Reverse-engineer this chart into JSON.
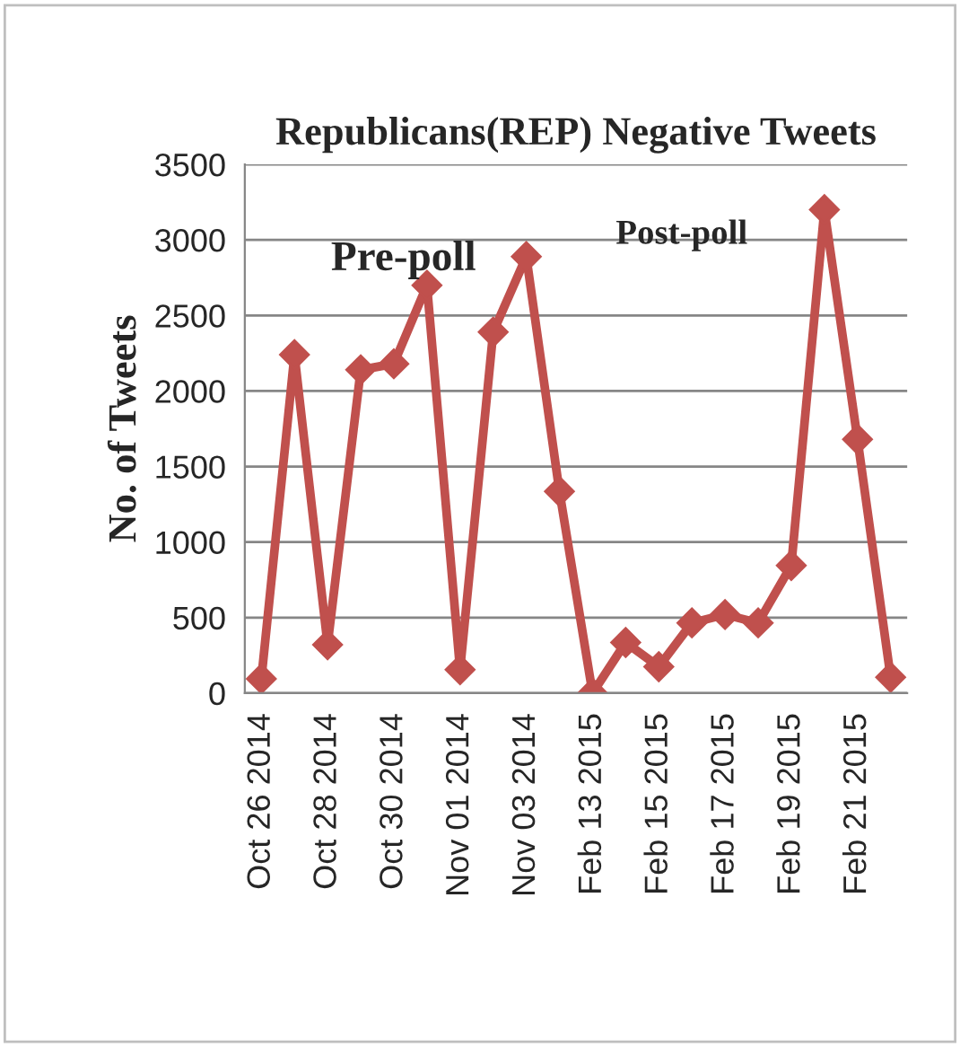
{
  "chart_data": {
    "type": "line",
    "title": "Republicans(REP) Negative Tweets",
    "ylabel": "No. of Tweets",
    "categories": [
      "Oct 26 2014",
      null,
      "Oct 28 2014",
      null,
      "Oct 30 2014",
      null,
      "Nov 01 2014",
      null,
      "Nov 03 2014",
      null,
      "Feb 13 2015",
      null,
      "Feb 15 2015",
      null,
      "Feb 17 2015",
      null,
      "Feb 19 2015",
      null,
      "Feb 21 2015",
      null
    ],
    "series": [
      {
        "color": "#c0504d",
        "values": [
          95,
          2240,
          320,
          2140,
          2180,
          2700,
          155,
          2390,
          2890,
          1335,
          0,
          335,
          175,
          465,
          520,
          465,
          845,
          3200,
          1680,
          105
        ]
      }
    ],
    "ylim": [
      0,
      3500
    ],
    "yticks": [
      0,
      500,
      1000,
      1500,
      2000,
      2500,
      3000,
      3500
    ],
    "annotations": [
      "Pre-poll",
      "Post-poll"
    ],
    "grid": "y",
    "legend": false,
    "marker": "diamond",
    "line_style": "solid"
  }
}
